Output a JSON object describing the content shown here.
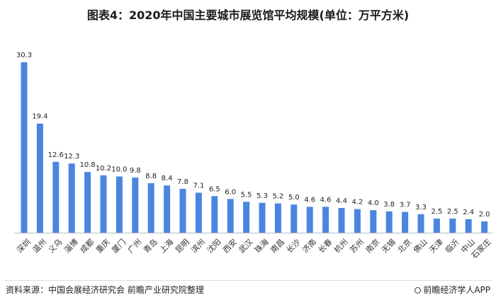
{
  "chart_data": {
    "type": "bar",
    "title": "图表4：2020年中国主要城市展览馆平均规模(单位：万平方米)",
    "categories": [
      "深圳",
      "温州",
      "义乌",
      "淄博",
      "成都",
      "重庆",
      "厦门",
      "广州",
      "青岛",
      "上海",
      "昆明",
      "滨州",
      "沈阳",
      "西安",
      "武汉",
      "珠海",
      "南昌",
      "长沙",
      "济南",
      "长春",
      "杭州",
      "苏州",
      "南京",
      "无锡",
      "北京",
      "佛山",
      "天津",
      "临沂",
      "中山",
      "石家庄"
    ],
    "values": [
      30.3,
      19.4,
      12.6,
      12.3,
      10.8,
      10.2,
      10.0,
      9.8,
      8.8,
      8.4,
      7.8,
      7.1,
      6.5,
      6.0,
      5.5,
      5.3,
      5.2,
      5.0,
      4.6,
      4.6,
      4.4,
      4.2,
      4.0,
      3.8,
      3.7,
      3.3,
      2.5,
      2.5,
      2.4,
      2.0
    ],
    "ylim": [
      0,
      30.3
    ],
    "grid": false,
    "legend": "none",
    "bar_color": "#4a86e0"
  },
  "footer": {
    "source": "资料来源：中国会展经济研究会 前瞻产业研究院整理",
    "credit": "前瞻经济学人APP"
  }
}
